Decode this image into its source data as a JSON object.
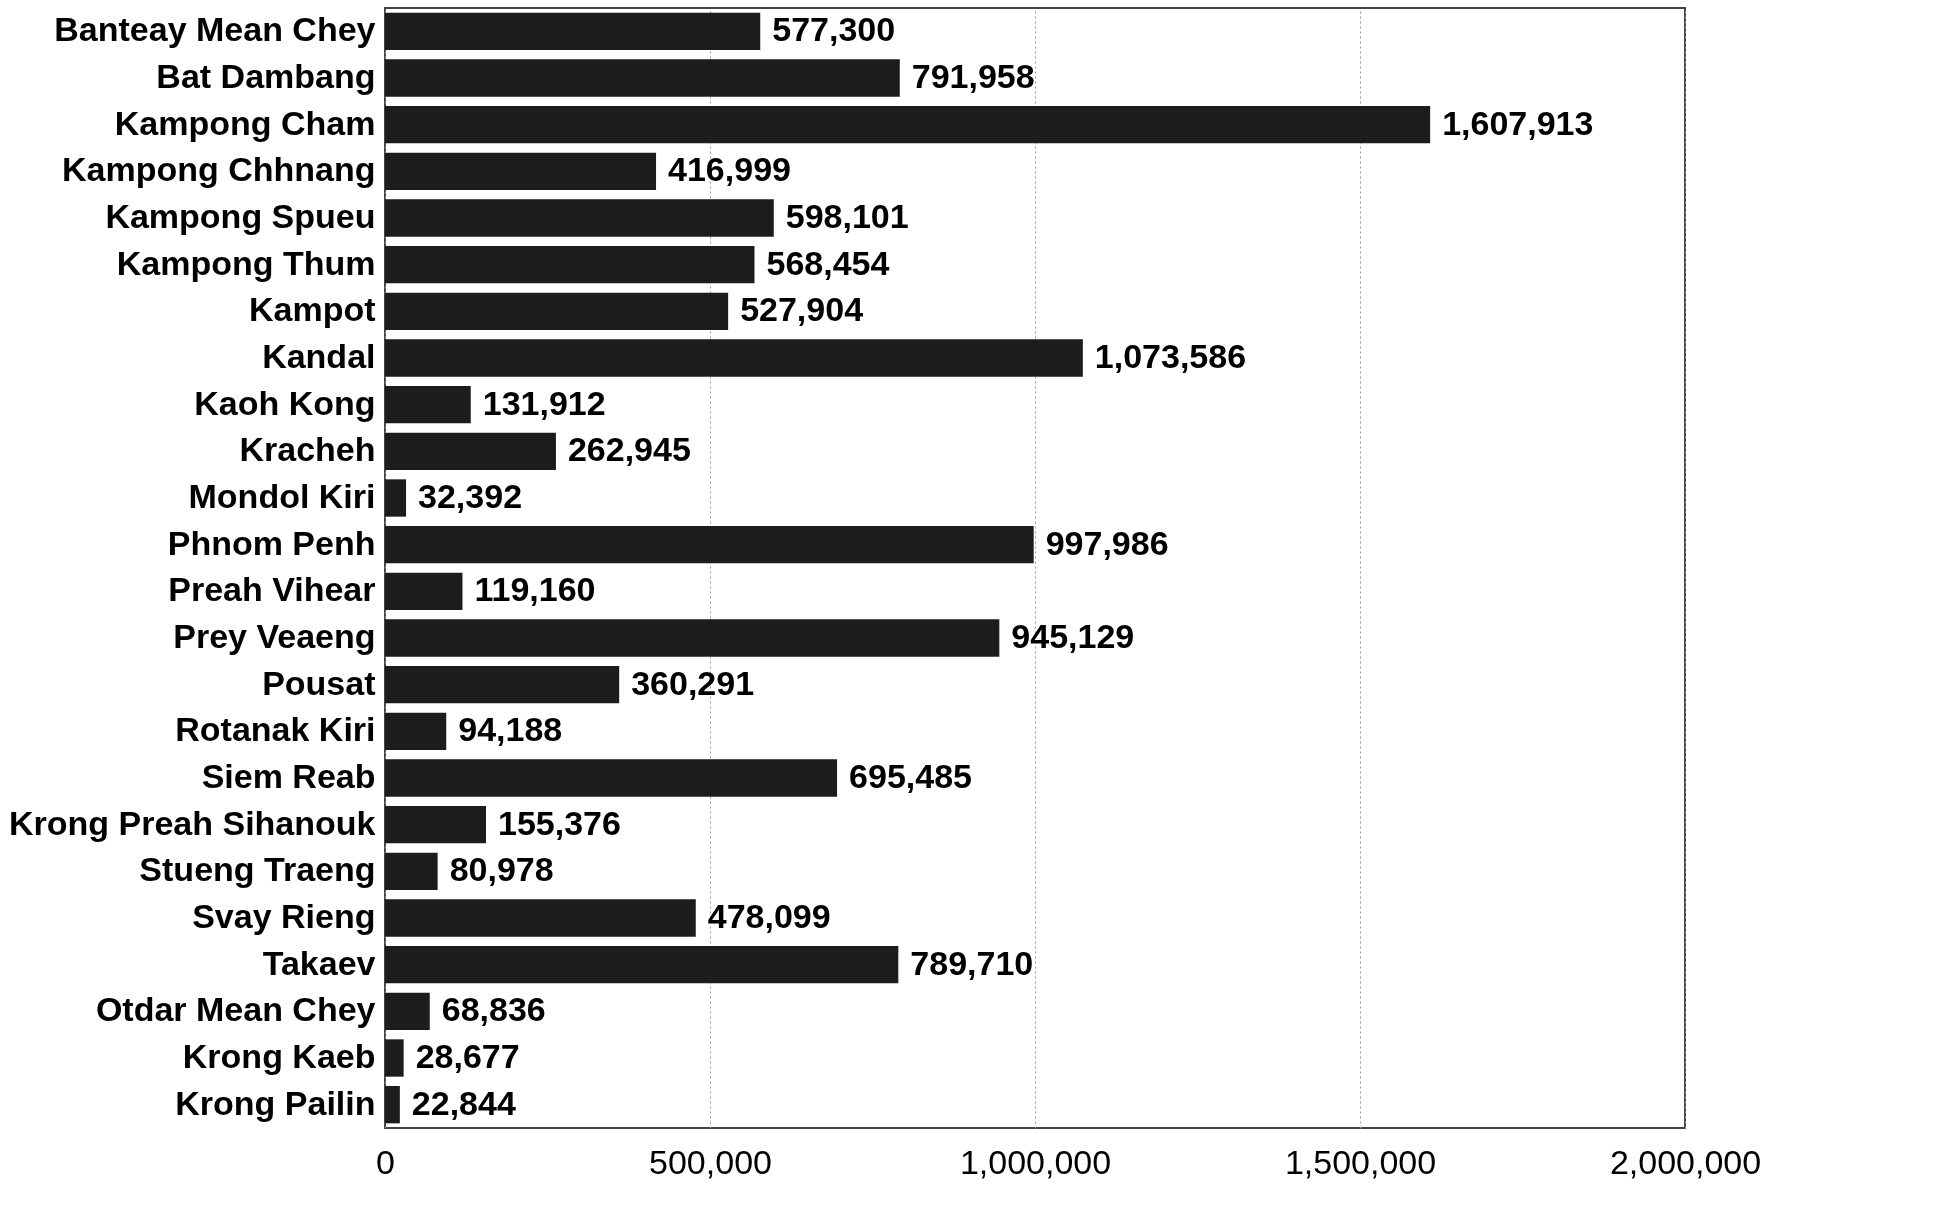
{
  "chart_data": {
    "type": "bar",
    "orientation": "horizontal",
    "categories": [
      "Banteay Mean Chey",
      "Bat Dambang",
      "Kampong Cham",
      "Kampong Chhnang",
      "Kampong Spueu",
      "Kampong Thum",
      "Kampot",
      "Kandal",
      "Kaoh Kong",
      "Kracheh",
      "Mondol Kiri",
      "Phnom Penh",
      "Preah Vihear",
      "Prey Veaeng",
      "Pousat",
      "Rotanak Kiri",
      "Siem Reab",
      "Krong Preah Sihanouk",
      "Stueng Traeng",
      "Svay Rieng",
      "Takaev",
      "Otdar Mean Chey",
      "Krong Kaeb",
      "Krong Pailin"
    ],
    "values": [
      577300,
      791958,
      1607913,
      416999,
      598101,
      568454,
      527904,
      1073586,
      131912,
      262945,
      32392,
      997986,
      119160,
      945129,
      360291,
      94188,
      695485,
      155376,
      80978,
      478099,
      789710,
      68836,
      28677,
      22844
    ],
    "value_labels": [
      "577,300",
      "791,958",
      "1,607,913",
      "416,999",
      "598,101",
      "568,454",
      "527,904",
      "1,073,586",
      "131,912",
      "262,945",
      "32,392",
      "997,986",
      "119,160",
      "945,129",
      "360,291",
      "94,188",
      "695,485",
      "155,376",
      "80,978",
      "478,099",
      "789,710",
      "68,836",
      "28,677",
      "22,844"
    ],
    "color": "#1c1c1c",
    "xlim": [
      0,
      2000000
    ],
    "xticks": [
      0,
      {
        "value": 500000,
        "label": "500,000"
      },
      {
        "value": 1000000,
        "label": "1,000,000"
      },
      {
        "value": 1500000,
        "label": "1,500,000"
      },
      {
        "value": 2000000,
        "label": "2,000,000"
      }
    ],
    "grid": "x"
  }
}
